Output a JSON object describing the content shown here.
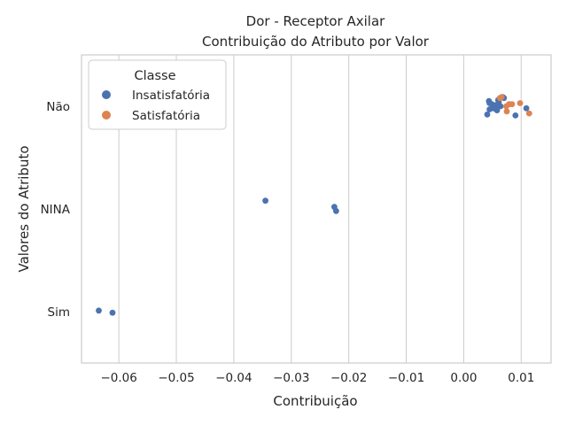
{
  "chart_data": {
    "type": "scatter",
    "title": "Dor - Receptor Axilar",
    "subtitle": "Contribuição do Atributo por Valor",
    "xlabel": "Contribuição",
    "ylabel": "Valores do Atributo",
    "categories": [
      "Não",
      "NINA",
      "Sim"
    ],
    "xlim": [
      -0.0665,
      0.0152
    ],
    "x_ticks": [
      -0.06,
      -0.05,
      -0.04,
      -0.03,
      -0.02,
      -0.01,
      0.0,
      0.01
    ],
    "x_tick_labels": [
      "−0.06",
      "−0.05",
      "−0.04",
      "−0.03",
      "−0.02",
      "−0.01",
      "0.00",
      "0.01"
    ],
    "grid": "vertical",
    "legend": {
      "title": "Classe",
      "placement": "top-left"
    },
    "series": [
      {
        "name": "Insatisfatória",
        "color": "#4c72b0",
        "points": [
          {
            "x": 0.0044,
            "y": "Não",
            "jitter": 0.05
          },
          {
            "x": 0.0045,
            "y": "Não",
            "jitter": 0.03
          },
          {
            "x": 0.0049,
            "y": "Não",
            "jitter": 0.02
          },
          {
            "x": 0.0052,
            "y": "Não",
            "jitter": -0.02
          },
          {
            "x": 0.0056,
            "y": "Não",
            "jitter": 0.01
          },
          {
            "x": 0.0058,
            "y": "Não",
            "jitter": -0.04
          },
          {
            "x": 0.0061,
            "y": "Não",
            "jitter": 0.04
          },
          {
            "x": 0.0064,
            "y": "Não",
            "jitter": 0.0
          },
          {
            "x": 0.0068,
            "y": "Não",
            "jitter": 0.09
          },
          {
            "x": 0.007,
            "y": "Não",
            "jitter": 0.08
          },
          {
            "x": 0.0045,
            "y": "Não",
            "jitter": -0.03
          },
          {
            "x": 0.0041,
            "y": "Não",
            "jitter": -0.08
          },
          {
            "x": 0.009,
            "y": "Não",
            "jitter": -0.09
          },
          {
            "x": 0.0109,
            "y": "Não",
            "jitter": -0.02
          },
          {
            "x": 0.006,
            "y": "Não",
            "jitter": 0.06
          },
          {
            "x": -0.0345,
            "y": "NINA",
            "jitter": 0.08
          },
          {
            "x": -0.0225,
            "y": "NINA",
            "jitter": 0.02
          },
          {
            "x": -0.0222,
            "y": "NINA",
            "jitter": -0.02
          },
          {
            "x": -0.0635,
            "y": "Sim",
            "jitter": 0.01
          },
          {
            "x": -0.0611,
            "y": "Sim",
            "jitter": -0.01
          }
        ]
      },
      {
        "name": "Satisfatória",
        "color": "#dd8452",
        "points": [
          {
            "x": 0.0063,
            "y": "Não",
            "jitter": 0.08
          },
          {
            "x": 0.0066,
            "y": "Não",
            "jitter": 0.09
          },
          {
            "x": 0.0074,
            "y": "Não",
            "jitter": 0.0
          },
          {
            "x": 0.0079,
            "y": "Não",
            "jitter": 0.02
          },
          {
            "x": 0.0084,
            "y": "Não",
            "jitter": 0.02
          },
          {
            "x": 0.0098,
            "y": "Não",
            "jitter": 0.03
          },
          {
            "x": 0.0075,
            "y": "Não",
            "jitter": -0.05
          },
          {
            "x": 0.0114,
            "y": "Não",
            "jitter": -0.07
          }
        ]
      }
    ]
  }
}
